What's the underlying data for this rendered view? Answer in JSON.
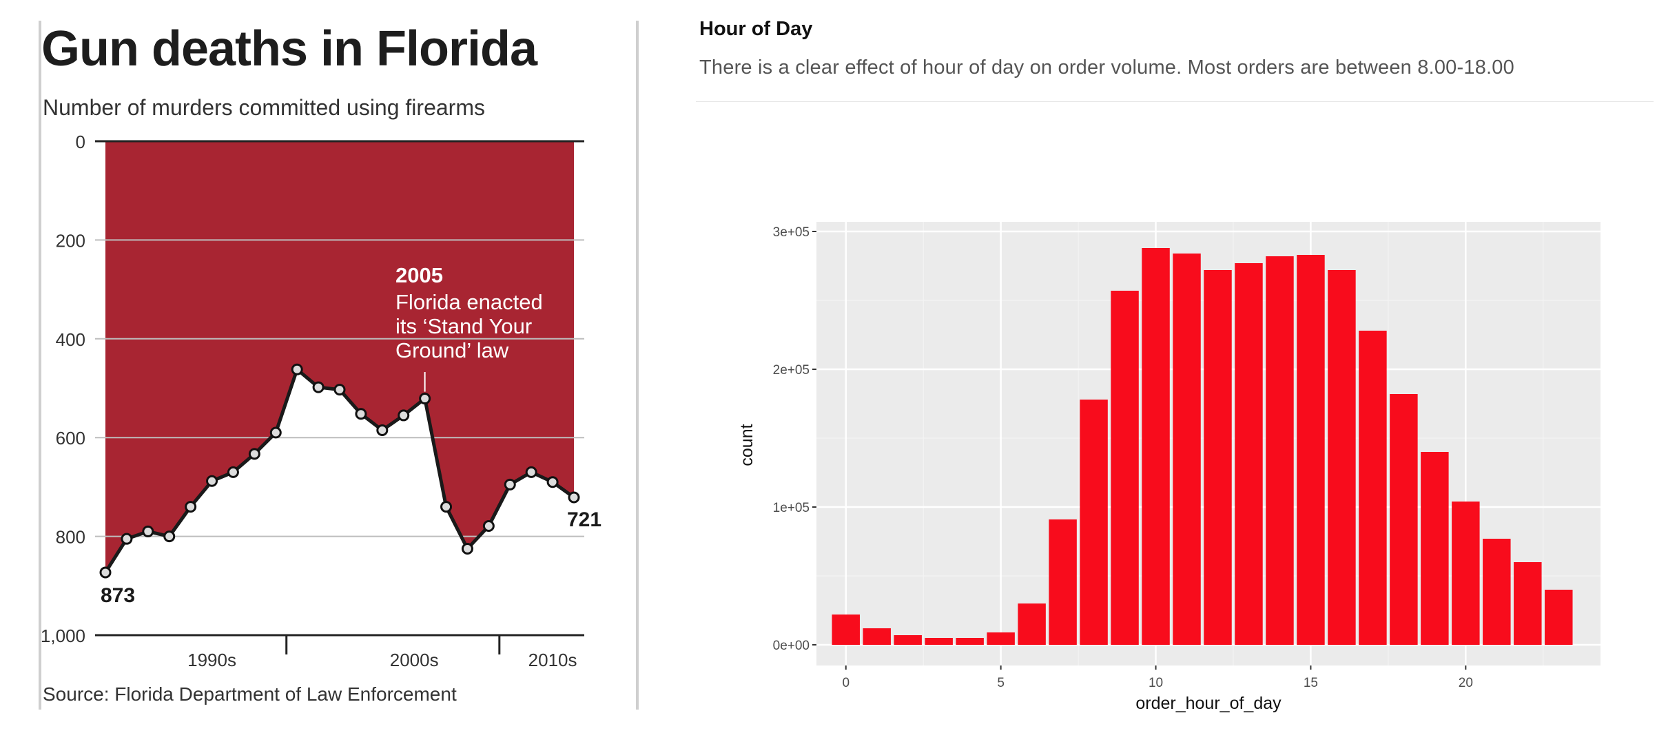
{
  "chart_data": [
    {
      "type": "area",
      "title": "Gun deaths in Florida",
      "subtitle": "Number of murders committed using firearms",
      "source": "Source: Florida Department of Law Enforcement",
      "y_inverted": true,
      "ylim": [
        0,
        1000
      ],
      "ytick_labels": [
        "0",
        "200",
        "400",
        "600",
        "800",
        "1,000"
      ],
      "xtick_labels": [
        "1990s",
        "2000s",
        "2010s"
      ],
      "x": [
        1990,
        1991,
        1992,
        1993,
        1994,
        1995,
        1996,
        1997,
        1998,
        1999,
        2000,
        2001,
        2002,
        2003,
        2004,
        2005,
        2006,
        2007,
        2008,
        2009,
        2010,
        2011,
        2012
      ],
      "values": [
        873,
        805,
        790,
        800,
        740,
        688,
        670,
        633,
        590,
        462,
        498,
        503,
        552,
        585,
        555,
        521,
        740,
        825,
        779,
        695,
        670,
        690,
        721
      ],
      "annotation": {
        "year_label": "2005",
        "lines": [
          "Florida enacted",
          "its ‘Stand Your",
          "Ground’ law"
        ]
      },
      "start_label": "873",
      "end_label": "721",
      "colors": {
        "fill": "#a82532",
        "line": "#1a1a1a",
        "marker": "#dddddd"
      }
    },
    {
      "type": "bar",
      "title": "Hour of Day",
      "description": "There is a clear effect of hour of day on order volume. Most orders are between 8.00-18.00",
      "xlabel": "order_hour_of_day",
      "ylabel": "count",
      "categories": [
        0,
        1,
        2,
        3,
        4,
        5,
        6,
        7,
        8,
        9,
        10,
        11,
        12,
        13,
        14,
        15,
        16,
        17,
        18,
        19,
        20,
        21,
        22,
        23
      ],
      "values": [
        22000,
        12000,
        7000,
        5000,
        5000,
        9000,
        30000,
        91000,
        178000,
        257000,
        288000,
        284000,
        272000,
        277000,
        282000,
        283000,
        272000,
        228000,
        182000,
        140000,
        104000,
        77000,
        60000,
        40000
      ],
      "ylim": [
        0,
        300000
      ],
      "yticks": [
        0,
        100000,
        200000,
        300000
      ],
      "ytick_labels": [
        "0e+00",
        "1e+05",
        "2e+05",
        "3e+05"
      ],
      "xticks": [
        0,
        5,
        10,
        15,
        20
      ],
      "xtick_labels": [
        "0",
        "5",
        "10",
        "15",
        "20"
      ],
      "colors": {
        "bar": "#f80c1c",
        "panel": "#ebebeb",
        "grid": "#ffffff"
      }
    }
  ]
}
